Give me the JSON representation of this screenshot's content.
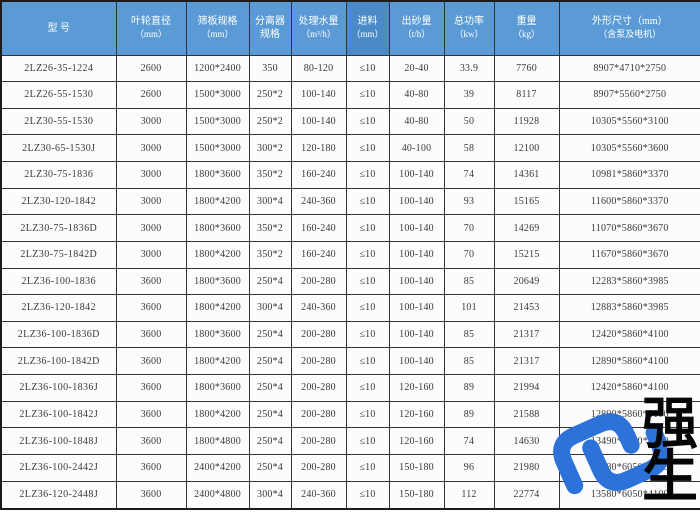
{
  "colors": {
    "header_bg": "#5b9bd5",
    "header_highlight": "#4a8ac6",
    "border": "#333333",
    "text": "#3a3a3a",
    "logo_blue": "#2c72d9"
  },
  "watermark": {
    "brand_chars": "强生",
    "s_icon": "interlocked-s-chain-link-icon"
  },
  "table": {
    "columns": [
      {
        "line1": "型  号",
        "line2": ""
      },
      {
        "line1": "叶轮直径",
        "line2": "（mm）"
      },
      {
        "line1": "筛板规格",
        "line2": "（mm）"
      },
      {
        "line1": "分离器规格",
        "line2": ""
      },
      {
        "line1": "处理水量",
        "line2": "（m³/h）"
      },
      {
        "line1": "进料",
        "line2": "（mm）",
        "highlight": true
      },
      {
        "line1": "出砂量",
        "line2": "（t/h）"
      },
      {
        "line1": "总功率",
        "line2": "（kw）"
      },
      {
        "line1": "重量",
        "line2": "（kg）"
      },
      {
        "line1": "外形尺寸（mm）",
        "line2": "（含泵及电机）"
      }
    ],
    "rows": [
      [
        "2LZ26-35-1224",
        "2600",
        "1200*2400",
        "350",
        "80-120",
        "≤10",
        "20-40",
        "33.9",
        "7760",
        "8907*4710*2750"
      ],
      [
        "2LZ26-55-1530",
        "2600",
        "1500*3000",
        "250*2",
        "100-140",
        "≤10",
        "40-80",
        "39",
        "8117",
        "8907*5560*2750"
      ],
      [
        "2LZ30-55-1530",
        "3000",
        "1500*3000",
        "250*2",
        "100-140",
        "≤10",
        "40-80",
        "50",
        "11928",
        "10305*5560*3100"
      ],
      [
        "2LZ30-65-1530J",
        "3000",
        "1500*3000",
        "300*2",
        "120-180",
        "≤10",
        "40-100",
        "58",
        "12100",
        "10305*5560*3600"
      ],
      [
        "2LZ30-75-1836",
        "3000",
        "1800*3600",
        "350*2",
        "160-240",
        "≤10",
        "100-140",
        "74",
        "14361",
        "10981*5860*3370"
      ],
      [
        "2LZ30-120-1842",
        "3000",
        "1800*4200",
        "300*4",
        "240-360",
        "≤10",
        "100-140",
        "93",
        "15165",
        "11600*5860*3370"
      ],
      [
        "2LZ30-75-1836D",
        "3000",
        "1800*3600",
        "350*2",
        "160-240",
        "≤10",
        "100-140",
        "70",
        "14269",
        "11070*5860*3670"
      ],
      [
        "2LZ30-75-1842D",
        "3000",
        "1800*4200",
        "350*2",
        "160-240",
        "≤10",
        "100-140",
        "70",
        "15215",
        "11670*5860*3670"
      ],
      [
        "2LZ36-100-1836",
        "3600",
        "1800*3600",
        "250*4",
        "200-280",
        "≤10",
        "100-140",
        "85",
        "20649",
        "12283*5860*3985"
      ],
      [
        "2LZ36-120-1842",
        "3600",
        "1800*4200",
        "300*4",
        "240-360",
        "≤10",
        "100-140",
        "101",
        "21453",
        "12883*5860*3985"
      ],
      [
        "2LZ36-100-1836D",
        "3600",
        "1800*3600",
        "250*4",
        "200-280",
        "≤10",
        "100-140",
        "85",
        "21317",
        "12420*5860*4100"
      ],
      [
        "2LZ36-100-1842D",
        "3600",
        "1800*4200",
        "250*4",
        "200-280",
        "≤10",
        "100-140",
        "85",
        "21317",
        "12890*5860*4100"
      ],
      [
        "2LZ36-100-1836J",
        "3600",
        "1800*3600",
        "250*4",
        "200-280",
        "≤10",
        "120-160",
        "89",
        "21994",
        "12420*5860*4100"
      ],
      [
        "2LZ36-100-1842J",
        "3600",
        "1800*4200",
        "250*4",
        "200-280",
        "≤10",
        "120-160",
        "89",
        "21588",
        "12890*5860*4100"
      ],
      [
        "2LZ36-100-1848J",
        "3600",
        "1800*4800",
        "250*4",
        "200-280",
        "≤10",
        "120-160",
        "74",
        "14630",
        "13490*5860*4100"
      ],
      [
        "2LZ36-100-2442J",
        "3600",
        "2400*4200",
        "250*4",
        "200-280",
        "≤10",
        "150-180",
        "96",
        "21980",
        "12980*6050*4100"
      ],
      [
        "2LZ36-120-2448J",
        "3600",
        "2400*4800",
        "300*4",
        "240-360",
        "≤10",
        "150-180",
        "112",
        "22774",
        "13580*6050*4100"
      ]
    ]
  }
}
